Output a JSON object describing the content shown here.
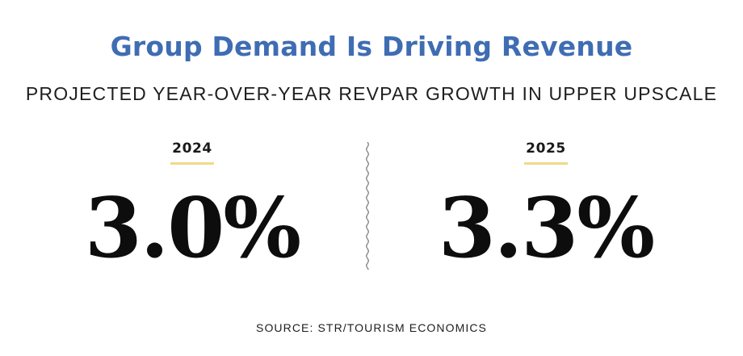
{
  "header": {
    "title": "Group Demand Is Driving Revenue",
    "subtitle": "PROJECTED YEAR-OVER-YEAR REVPAR GROWTH IN UPPER UPSCALE"
  },
  "stats": [
    {
      "year": "2024",
      "value": "3.0%"
    },
    {
      "year": "2025",
      "value": "3.3%"
    }
  ],
  "footer": {
    "source": "SOURCE: STR/TOURISM ECONOMICS"
  },
  "colors": {
    "title": "#3f6db3",
    "year_underline": "#f2d98a",
    "text": "#1e1e1e",
    "divider": "#777777"
  }
}
